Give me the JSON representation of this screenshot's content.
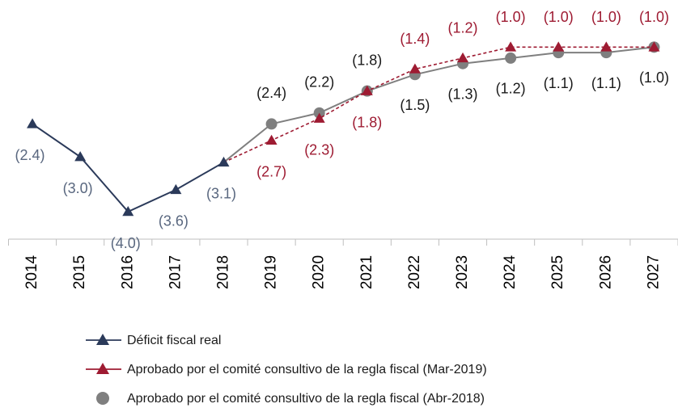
{
  "chart_data": {
    "type": "line",
    "categories": [
      "2014",
      "2015",
      "2016",
      "2017",
      "2018",
      "2019",
      "2020",
      "2021",
      "2022",
      "2023",
      "2024",
      "2025",
      "2026",
      "2027"
    ],
    "ylim": [
      -4.5,
      -0.2
    ],
    "series": [
      {
        "name": "Déficit fiscal real",
        "color": "#2b3a5a",
        "marker": "triangle",
        "dashed": false,
        "label_color": "#59677f",
        "values": [
          -2.4,
          -3.0,
          -4.0,
          -3.6,
          -3.1,
          null,
          null,
          null,
          null,
          null,
          null,
          null,
          null,
          null
        ],
        "value_labels": [
          "(2.4)",
          "(3.0)",
          "(4.0)",
          "(3.6)",
          "(3.1)",
          null,
          null,
          null,
          null,
          null,
          null,
          null,
          null,
          null
        ]
      },
      {
        "name": "Aprobado por el comité consultivo de la regla fiscal (Mar-2019)",
        "color": "#9e1b32",
        "marker": "triangle",
        "dashed": true,
        "label_color": "#9e1b32",
        "values": [
          null,
          null,
          null,
          null,
          -3.1,
          -2.7,
          -2.3,
          -1.8,
          -1.4,
          -1.2,
          -1.0,
          -1.0,
          -1.0,
          -1.0
        ],
        "value_labels": [
          null,
          null,
          null,
          null,
          null,
          "(2.7)",
          "(2.3)",
          "(1.8)",
          "(1.4)",
          "(1.2)",
          "(1.0)",
          "(1.0)",
          "(1.0)",
          "(1.0)"
        ]
      },
      {
        "name": "Aprobado por el comité consultivo de la regla fiscal (Abr-2018)",
        "color": "#7f7f7f",
        "marker": "circle",
        "dashed": false,
        "label_color": "#1a1a1a",
        "values": [
          null,
          null,
          null,
          null,
          -3.1,
          -2.4,
          -2.2,
          -1.8,
          -1.5,
          -1.3,
          -1.2,
          -1.1,
          -1.1,
          -1.0
        ],
        "value_labels": [
          null,
          null,
          null,
          null,
          null,
          "(2.4)",
          "(2.2)",
          "(1.8)",
          "(1.5)",
          "(1.3)",
          "(1.2)",
          "(1.1)",
          "(1.1)",
          "(1.0)"
        ]
      }
    ]
  }
}
